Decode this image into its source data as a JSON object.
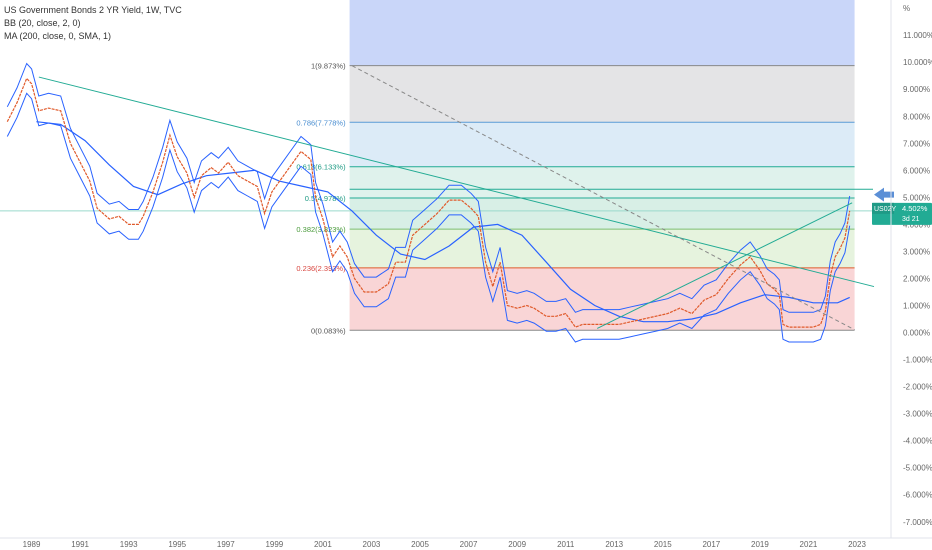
{
  "header": {
    "title": "US Government Bonds 2 YR Yield, 1W, TVC",
    "indicator_bb": "BB (20, close, 2, 0)",
    "indicator_ma": "MA (200, close, 0, SMA, 1)"
  },
  "price_tag": {
    "symbol": "US02Y",
    "value": "4.502%",
    "countdown": "3d 21"
  },
  "colors": {
    "price_line": "#e05a2b",
    "bands": "#2962ff",
    "trendline": "#22ab94",
    "tag_bg": "#22ab94",
    "arrow": "#5b8fd6"
  },
  "chart_data": {
    "type": "line",
    "title": "US Government Bonds 2 YR Yield, 1W, TVC",
    "xlabel": "",
    "ylabel": "%",
    "xlim": [
      1988.0,
      2024.7
    ],
    "ylim": [
      -7.6,
      12.3
    ],
    "x_ticks": [
      "1989",
      "1991",
      "1993",
      "1995",
      "1997",
      "1999",
      "2001",
      "2003",
      "2005",
      "2007",
      "2009",
      "2011",
      "2013",
      "2015",
      "2017",
      "2019",
      "2021",
      "2023"
    ],
    "y_ticks": [
      "11.000%",
      "10.000%",
      "9.000%",
      "8.000%",
      "7.000%",
      "6.000%",
      "5.000%",
      "4.000%",
      "3.000%",
      "2.000%",
      "1.000%",
      "0.000%",
      "-1.000%",
      "-2.000%",
      "-3.000%",
      "-4.000%",
      "-5.000%",
      "-6.000%",
      "-7.000%"
    ],
    "y_unit_label": "%",
    "series": [
      {
        "role": "price",
        "x": [
          1988.3,
          1988.7,
          1989.1,
          1989.3,
          1989.6,
          1990.0,
          1990.5,
          1990.9,
          1991.3,
          1991.7,
          1992.0,
          1992.5,
          1992.9,
          1993.3,
          1993.7,
          1993.9,
          1994.3,
          1994.7,
          1995.0,
          1995.3,
          1995.7,
          1996.0,
          1996.3,
          1996.7,
          1997.0,
          1997.4,
          1997.8,
          1998.2,
          1998.6,
          1998.9,
          1999.2,
          1999.6,
          2000.0,
          2000.4,
          2000.8,
          2001.0,
          2001.3,
          2001.7,
          2002.0,
          2002.3,
          2002.6,
          2003.0,
          2003.5,
          2004.0,
          2004.3,
          2004.7,
          2005.0,
          2005.5,
          2006.0,
          2006.5,
          2007.0,
          2007.4,
          2007.7,
          2008.0,
          2008.3,
          2008.6,
          2008.9,
          2009.3,
          2009.7,
          2010.0,
          2010.5,
          2010.9,
          2011.3,
          2011.7,
          2012.0,
          2012.5,
          2013.0,
          2013.5,
          2014.0,
          2014.5,
          2015.0,
          2015.5,
          2016.0,
          2016.5,
          2017.0,
          2017.5,
          2018.0,
          2018.5,
          2018.9,
          2019.3,
          2019.6,
          2019.9,
          2020.1,
          2020.25,
          2020.5,
          2021.0,
          2021.5,
          2021.8,
          2022.0,
          2022.2,
          2022.4,
          2022.6,
          2022.8,
          2023.0
        ],
        "y": [
          7.8,
          8.5,
          9.4,
          9.2,
          8.2,
          8.3,
          8.2,
          7.0,
          6.3,
          5.6,
          4.6,
          4.2,
          4.3,
          4.0,
          4.0,
          4.3,
          5.2,
          6.3,
          7.3,
          6.5,
          5.9,
          5.0,
          5.8,
          6.1,
          5.9,
          6.3,
          5.8,
          5.6,
          5.4,
          4.4,
          5.2,
          5.7,
          6.2,
          6.7,
          6.4,
          5.0,
          4.2,
          2.8,
          3.2,
          2.8,
          2.0,
          1.5,
          1.5,
          1.8,
          2.6,
          2.6,
          3.6,
          4.0,
          4.4,
          4.9,
          4.9,
          4.6,
          4.3,
          2.6,
          1.7,
          2.6,
          1.0,
          0.9,
          1.0,
          0.9,
          0.6,
          0.6,
          0.7,
          0.2,
          0.3,
          0.3,
          0.3,
          0.3,
          0.4,
          0.5,
          0.6,
          0.7,
          0.9,
          0.7,
          1.2,
          1.4,
          2.0,
          2.5,
          2.8,
          2.3,
          1.8,
          1.6,
          1.4,
          0.3,
          0.2,
          0.2,
          0.2,
          0.3,
          0.8,
          2.1,
          2.8,
          3.1,
          3.5,
          4.5
        ]
      },
      {
        "role": "ma200",
        "x": [
          1989.5,
          1990.5,
          1991.5,
          1992.5,
          1993.5,
          1994.5,
          1995.5,
          1996.5,
          1997.5,
          1998.5,
          1999.5,
          2000.5,
          2001.5,
          2002.5,
          2003.5,
          2004.5,
          2005.5,
          2006.5,
          2007.5,
          2008.5,
          2009.5,
          2010.5,
          2011.5,
          2012.5,
          2013.5,
          2014.5,
          2015.5,
          2016.5,
          2017.5,
          2018.5,
          2019.5,
          2020.5,
          2021.5,
          2022.5,
          2023.0
        ],
        "y": [
          7.8,
          7.7,
          7.1,
          6.2,
          5.4,
          5.1,
          5.5,
          5.8,
          5.9,
          6.0,
          5.6,
          5.4,
          5.2,
          4.5,
          3.6,
          2.9,
          2.7,
          3.2,
          3.9,
          4.0,
          3.6,
          2.6,
          1.6,
          1.0,
          0.6,
          0.4,
          0.4,
          0.5,
          0.7,
          1.1,
          1.4,
          1.3,
          1.1,
          1.1,
          1.3
        ]
      }
    ],
    "fibonacci": [
      {
        "label": "1(9.873%)",
        "value": 9.873
      },
      {
        "label": "0.786(7.778%)",
        "value": 7.778
      },
      {
        "label": "0.618(6.133%)",
        "value": 6.133
      },
      {
        "label": "0.5(4.978%)",
        "value": 4.978
      },
      {
        "label": "0.382(3.823%)",
        "value": 3.823
      },
      {
        "label": "0.236(2.393%)",
        "value": 2.393
      },
      {
        "label": "0(0.083%)",
        "value": 0.083
      }
    ],
    "fib_x_range": [
      2002.4,
      2023.2
    ],
    "trendlines": [
      {
        "name": "downtrend",
        "from": [
          1989.6,
          9.45
        ],
        "to": [
          2024.0,
          1.7
        ]
      },
      {
        "name": "uptrend",
        "from": [
          2012.6,
          0.15
        ],
        "to": [
          2023.1,
          4.8
        ]
      },
      {
        "name": "fib-diagonal",
        "from": [
          2002.5,
          9.87
        ],
        "to": [
          2023.2,
          0.1
        ]
      }
    ],
    "extra_hlines": [
      5.3,
      4.5
    ],
    "grid": false,
    "legend": "top-left"
  }
}
